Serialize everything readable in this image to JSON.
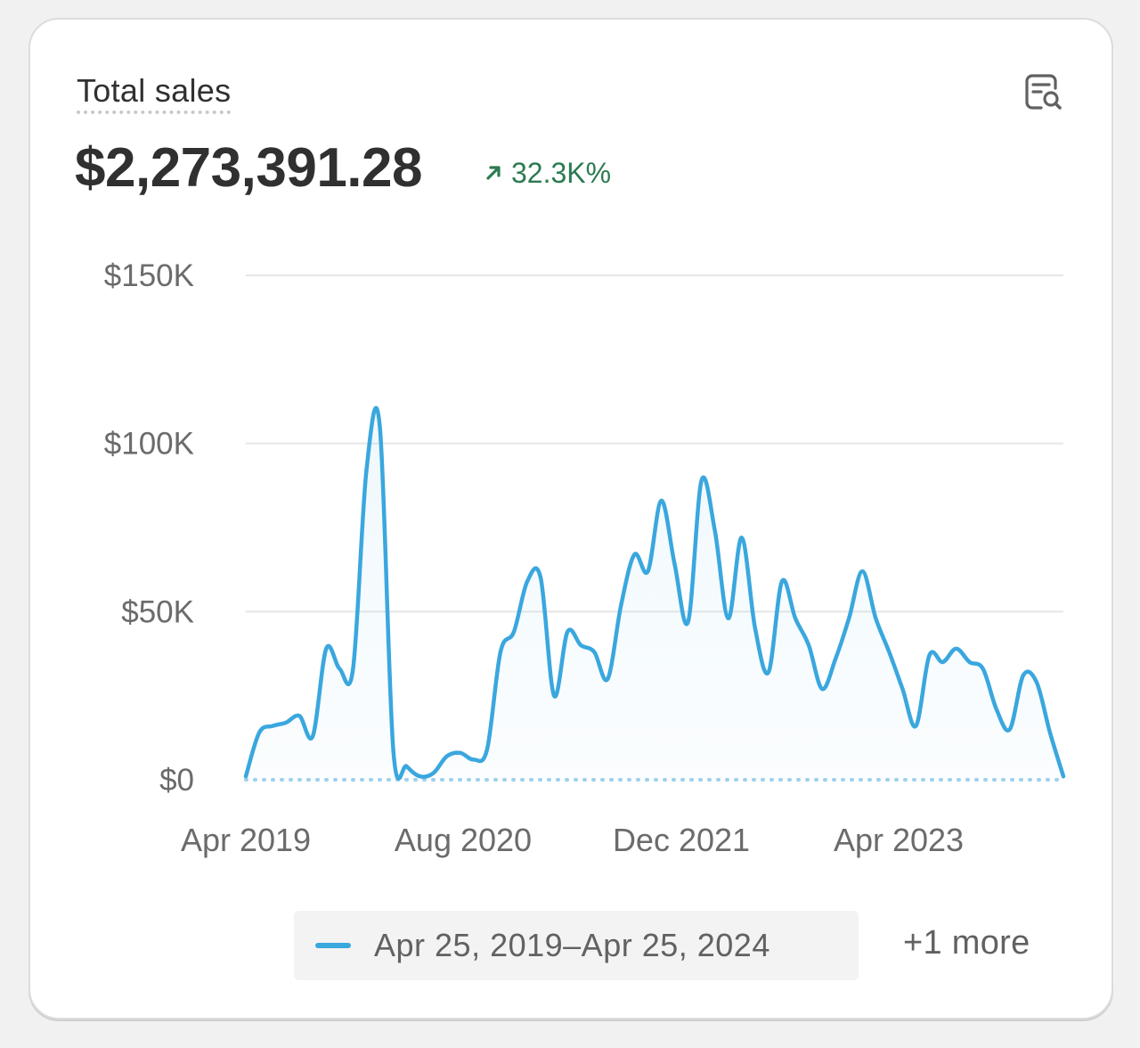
{
  "card": {
    "title": "Total sales",
    "total_value": "$2,273,391.28",
    "change": "32.3K%",
    "change_direction": "up",
    "change_color": "#2c7a51",
    "explore_icon": "data-explore-icon",
    "legend_label": "Apr 25, 2019–Apr 25, 2024",
    "more_label": "+1 more"
  },
  "colors": {
    "series": "#3aa7de",
    "comparison": "#9fd1ec",
    "grid": "#e6e6e6"
  },
  "chart_data": {
    "type": "line",
    "ylim": [
      0,
      150000
    ],
    "y_ticks": [
      {
        "value": 0,
        "label": "$0"
      },
      {
        "value": 50000,
        "label": "$50K"
      },
      {
        "value": 100000,
        "label": "$100K"
      },
      {
        "value": 150000,
        "label": "$150K"
      }
    ],
    "x_ticks": [
      "Apr 2019",
      "Aug 2020",
      "Dec 2021",
      "Apr 2023"
    ],
    "grid": true,
    "legend": "bottom",
    "series": [
      {
        "name": "Apr 25, 2019–Apr 25, 2024",
        "style": "solid-area",
        "values": [
          1000,
          14000,
          16000,
          17000,
          19000,
          13000,
          39000,
          33000,
          33000,
          92000,
          105000,
          9000,
          4000,
          1000,
          2000,
          7000,
          8000,
          6000,
          9000,
          38000,
          44000,
          59000,
          60000,
          25000,
          44000,
          40000,
          38000,
          30000,
          52000,
          67000,
          62000,
          83000,
          64000,
          47000,
          89000,
          74000,
          48000,
          72000,
          45000,
          32000,
          59000,
          48000,
          40000,
          27000,
          36000,
          48000,
          62000,
          48000,
          38000,
          27000,
          16000,
          37000,
          35000,
          39000,
          35000,
          33000,
          21000,
          15000,
          31000,
          29000,
          14000,
          1000
        ]
      },
      {
        "name": "+1 more",
        "style": "dotted",
        "values": [
          0,
          0
        ]
      }
    ]
  }
}
